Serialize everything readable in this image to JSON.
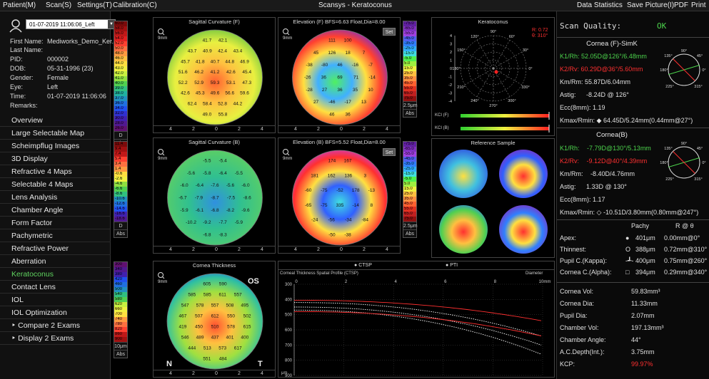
{
  "menu": {
    "items": [
      "Patient(M)",
      "Scan(S)",
      "Settings(T)",
      "Calibration(C)"
    ],
    "title": "Scansys - Keratoconus",
    "right": [
      "Data Statistics",
      "Save Picture(I)",
      "PDF",
      "Print"
    ]
  },
  "patient": {
    "exam_date": "01-07-2019 11:06:06_Left",
    "first_name_label": "First Name:",
    "first_name": "Mediworks_Demo_Ker...",
    "last_name_label": "Last Name:",
    "last_name": "",
    "pid_label": "PID:",
    "pid": "000002",
    "dob_label": "DOB:",
    "dob": "05-31-1996  (23)",
    "gender_label": "Gender:",
    "gender": "Female",
    "eye_label": "Eye:",
    "eye": "Left",
    "time_label": "Time:",
    "time": "01-07-2019 11:06:06",
    "remarks_label": "Remarks:"
  },
  "nav": [
    "Overview",
    "Large Selectable Map",
    "Scheimpflug Images",
    "3D Display",
    "Refractive 4 Maps",
    "Selectable 4 Maps",
    "Lens Analysis",
    "Chamber Angle",
    "Form Factor",
    "Pachymetric",
    "Refractive Power",
    "Aberration",
    "Keratoconus",
    "Contact Lens",
    "IOL",
    "IOL Optimization",
    "‣ Compare 2 Exams",
    "‣ Display 2 Exams"
  ],
  "nav_active": 12,
  "scale1": {
    "values": [
      "60.0",
      "58.0",
      "56.0",
      "54.0",
      "52.0",
      "50.0",
      "48.0",
      "46.0",
      "44.0",
      "43.0",
      "42.0",
      "41.0",
      "40.0",
      "39.0",
      "38.0",
      "37.0",
      "36.0",
      "34.0",
      "32.0",
      "30.0",
      "28.0",
      "26.0"
    ],
    "unit": "D",
    "mode": "Abs"
  },
  "scale2": {
    "values": [
      "11.4",
      "9.4",
      "7.4",
      "5.4",
      "3.4",
      "1.4",
      "-0.6",
      "-2.6",
      "-4.6",
      "-6.6",
      "-8.6",
      "-10.6",
      "-12.6",
      "-14.6",
      "-16.6",
      "-18.6"
    ],
    "unit": "D",
    "mode": "Abs"
  },
  "scale3": {
    "values": [
      "300",
      "340",
      "380",
      "420",
      "460",
      "500",
      "540",
      "580",
      "620",
      "660",
      "700",
      "740",
      "780",
      "820",
      "860",
      "900"
    ],
    "unit": "10μm",
    "mode": "Abs"
  },
  "scale_elev1": {
    "values": [
      "-75.0",
      "-65.0",
      "-55.0",
      "-45.0",
      "-35.0",
      "-25.0",
      "-15.0",
      "-5.0",
      "5.0",
      "15.0",
      "25.0",
      "35.0",
      "45.0",
      "55.0",
      "65.0",
      "75.0"
    ],
    "unit": "2.5μm",
    "mode": "Abs"
  },
  "scale_elev2": {
    "values": [
      "-75.0",
      "-65.0",
      "-55.0",
      "-45.0",
      "-35.0",
      "-25.0",
      "-15.0",
      "-5.0",
      "5.0",
      "15.0",
      "25.0",
      "35.0",
      "45.0",
      "55.0",
      "65.0",
      "75.0"
    ],
    "unit": "2.5μm",
    "mode": "Abs"
  },
  "maps": {
    "sag_f": {
      "title": "Sagittal Curvature (F)",
      "zoom": "9mm",
      "values": [
        "41.7",
        "42.1",
        "43.7",
        "40.9",
        "42.4",
        "43.4",
        "45.7",
        "41.8",
        "40.7",
        "44.8",
        "46.9",
        "51.6",
        "46.2",
        "41.2",
        "42.6",
        "45.4",
        "52.2",
        "52.9",
        "59.3",
        "53.1",
        "47.3",
        "42.6",
        "45.3",
        "49.6",
        "56.6",
        "59.6",
        "62.4",
        "58.4",
        "52.8",
        "44.2",
        "49.0",
        "55.8",
        "60.8",
        "58.7",
        "57.0",
        "52.0",
        "47.6",
        "46.7",
        "53.7",
        "59.3",
        "58.6",
        "57.7",
        "52.7",
        "47.6",
        "55.4",
        "55.1",
        "54.4",
        "48.5",
        "49.8",
        "50.1",
        "50.8",
        "50.6"
      ],
      "axis": [
        "4",
        "2",
        "0",
        "2",
        "4"
      ]
    },
    "elev_f": {
      "title": "Elevation (F) BFS=6.63 Float,Dia=8.00",
      "zoom": "9mm",
      "set": "Set",
      "values": [
        "111",
        "100",
        "45",
        "126",
        "18",
        "7",
        "-38",
        "-80",
        "46",
        "-16",
        "-7",
        "-26",
        "36",
        "69",
        "71",
        "-14",
        "-28",
        "27",
        "36",
        "35",
        "10",
        "27",
        "-46",
        "-17",
        "13",
        "46",
        "36",
        "36",
        "-46",
        "-47",
        "25",
        "40",
        "-48",
        "-3",
        "-24",
        "25",
        "-47",
        "-24",
        "-51",
        "3",
        "-46",
        "-40"
      ],
      "axis": [
        "4",
        "2",
        "0",
        "2",
        "4"
      ]
    },
    "sag_b": {
      "title": "Sagittal Curvature (B)",
      "zoom": "9mm",
      "values": [
        "-5.5",
        "-5.4",
        "-5.6",
        "-5.8",
        "-6.4",
        "-5.5",
        "-6.0",
        "-6.4",
        "-7.6",
        "-5.6",
        "-6.0",
        "-6.7",
        "-7.9",
        "-8.7",
        "-7.5",
        "-8.6",
        "-5.9",
        "-6.1",
        "-6.8",
        "-8.2",
        "-9.6",
        "-10.2",
        "-9.2",
        "-7.7",
        "-5.9",
        "-6.8",
        "-8.3",
        "-10.2",
        "-9.8",
        "-9.2",
        "-7.8",
        "-6.8",
        "-7.5",
        "-9.3",
        "-8.5",
        "-7.9",
        "-7.0",
        "-7.8",
        "-8.1",
        "-8.2",
        "-7.0",
        "-7.1",
        "-7.2",
        "-7.3"
      ],
      "axis": [
        "4",
        "2",
        "0",
        "2",
        "4"
      ]
    },
    "elev_b": {
      "title": "Elevation (B) BFS=5.52 Float,Dia=8.00",
      "zoom": "9mm",
      "set": "Set",
      "values": [
        "174",
        "167",
        "181",
        "162",
        "136",
        "3",
        "-60",
        "-75",
        "-52",
        "178",
        "-13",
        "-65",
        "-75",
        "335",
        "-14",
        "8",
        "-24",
        "-56",
        "-34",
        "-84",
        "-50",
        "-38",
        "-55",
        "-100",
        "-82",
        "-56",
        "-55",
        "-46",
        "-74"
      ],
      "axis": [
        "4",
        "2",
        "0",
        "2",
        "4"
      ]
    },
    "thick": {
      "title": "Cornea Thickness",
      "zoom": "9mm",
      "os": "OS",
      "n": "N",
      "t": "T",
      "values": [
        "605",
        "590",
        "585",
        "585",
        "611",
        "557",
        "547",
        "578",
        "557",
        "508",
        "495",
        "467",
        "507",
        "612",
        "550",
        "502",
        "419",
        "450",
        "510",
        "578",
        "615",
        "546",
        "489",
        "437",
        "401",
        "400",
        "444",
        "513",
        "573",
        "617",
        "551",
        "484",
        "401",
        "398",
        "431",
        "506",
        "576",
        "620",
        "552",
        "476",
        "457",
        "432",
        "497",
        "571",
        "557",
        "533",
        "509",
        "578",
        "598",
        "598",
        "592",
        "588"
      ],
      "axis": [
        "4",
        "2",
        "0",
        "2",
        "4"
      ]
    }
  },
  "keratoconus": {
    "title": "Keratoconus",
    "r_label": "R: 0.72",
    "theta": "θ: 310°",
    "angles": [
      "90°",
      "120°",
      "60°",
      "150°",
      "30°",
      "180°",
      "0°",
      "210°",
      "330°",
      "240°",
      "300°",
      "270°"
    ],
    "ticks": [
      "4",
      "3",
      "2",
      "1",
      "0",
      "-1",
      "-2",
      "-3",
      "-4"
    ],
    "kci_f": "KCI (F)",
    "kci_b": "KCI (B)"
  },
  "reference": {
    "title": "Reference Sample"
  },
  "ctsp": {
    "legend_ctsp": "CTSP",
    "legend_pti": "PTI",
    "title": "Corneal Thickness Spatial Profile (CTSP)",
    "diameter": "Diameter",
    "xticks": [
      "0",
      "2",
      "4",
      "6",
      "8",
      "10mm"
    ],
    "yticks": [
      "300",
      "400",
      "500",
      "600",
      "700",
      "800",
      "900"
    ],
    "yunit": "μm"
  },
  "right": {
    "scan_quality_label": "Scan Quality:",
    "scan_quality": "OK",
    "front_title": "Cornea (F)-SimK",
    "k1": "K1/Rh:",
    "k1v": "52.05D@126°/6.48mm",
    "k2": "K2/Rv:",
    "k2v": "60.29D@36°/5.60mm",
    "km": "Km/Rm:",
    "kmv": "55.87D/6.04mm",
    "astig": "Astig:",
    "astigv": "-8.24D @ 126°",
    "ecc": "Ecc(8mm):",
    "eccv": "1.19",
    "kmax": "Kmax/Rmin:",
    "kmaxv": "◆ 64.45D/5.24mm(0.44mm@27°)",
    "back_title": "Cornea(B)",
    "bk1v": "-7.79D@130°/5.13mm",
    "bk2v": "-9.12D@40°/4.39mm",
    "bkmv": "-8.40D/4.76mm",
    "bastigv": "1.33D @ 130°",
    "beccv": "1.17",
    "bkmaxv": "◇ -10.51D/3.80mm(0.80mm@247°)",
    "pachy_h": "Pachy",
    "r_theta_h": "R @ θ",
    "pachy": [
      {
        "label": "Apex:",
        "sym": "●",
        "v": "401μm",
        "r": "0.00mm@0°"
      },
      {
        "label": "Thinnest:",
        "sym": "O",
        "v": "388μm",
        "r": "0.72mm@310°"
      },
      {
        "label": "Pupil C.(Kappa):",
        "sym": "-┹-",
        "v": "400μm",
        "r": "0.75mm@260°"
      },
      {
        "label": "Cornea C.(Alpha):",
        "sym": "□",
        "v": "394μm",
        "r": "0.29mm@340°"
      }
    ],
    "vol": [
      {
        "label": "Cornea Vol:",
        "v": "59.83mm³"
      },
      {
        "label": "Cornea Dia:",
        "v": "11.33mm"
      },
      {
        "label": "Pupil Dia:",
        "v": "2.07mm"
      },
      {
        "label": "Chamber Vol:",
        "v": "197.13mm³"
      },
      {
        "label": "Chamber Angle:",
        "v": "44°"
      },
      {
        "label": "A.C.Depth(Int.):",
        "v": "3.75mm"
      },
      {
        "label": "KCP:",
        "v": "99.97%"
      }
    ],
    "rose_angles": [
      "90°",
      "135°",
      "45°",
      "180°",
      "0°",
      "225°",
      "315°"
    ]
  },
  "colors": {
    "green": "#4cd34c",
    "red": "#ff3030",
    "bg": "#000000"
  }
}
